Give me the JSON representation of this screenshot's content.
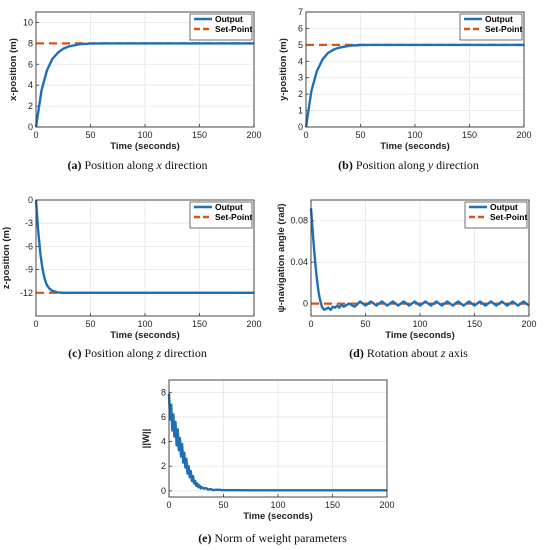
{
  "captions": [
    {
      "tag": "(a)",
      "pre": "Position along ",
      "var": "x",
      "post": " direction"
    },
    {
      "tag": "(b)",
      "pre": "Position along ",
      "var": "y",
      "post": " direction"
    },
    {
      "tag": "(c)",
      "pre": "Position along ",
      "var": "z",
      "post": " direction"
    },
    {
      "tag": "(d)",
      "pre": "Rotation about ",
      "var": "z",
      "post": " axis"
    },
    {
      "tag": "(e)",
      "pre": "Norm of weight parameters",
      "var": "",
      "post": ""
    }
  ],
  "colors": {
    "output": "#1f6fb5",
    "setpoint": "#d9541a",
    "axis": "#333333",
    "grid": "#e6e6e6"
  },
  "chart_data": [
    {
      "type": "line",
      "xlabel": "Time (seconds)",
      "ylabel": "x-position (m)",
      "xlim": [
        0,
        200
      ],
      "ylim": [
        0,
        11
      ],
      "xticks": [
        "0",
        "50",
        "100",
        "150",
        "200"
      ],
      "yticks": [
        {
          "v": 0,
          "t": "0"
        },
        {
          "v": 2,
          "t": "2"
        },
        {
          "v": 4,
          "t": "4"
        },
        {
          "v": 6,
          "t": "6"
        },
        {
          "v": 8,
          "t": "8"
        },
        {
          "v": 10,
          "t": "10"
        }
      ],
      "grid": true,
      "legend": "top-right",
      "series": [
        {
          "name": "Output",
          "x": [
            0,
            5,
            10,
            15,
            20,
            25,
            30,
            40,
            50,
            60,
            80,
            100,
            150,
            200
          ],
          "y": [
            0,
            3.5,
            5.4,
            6.5,
            7.1,
            7.5,
            7.7,
            7.92,
            7.98,
            8.0,
            8.0,
            8.0,
            8.0,
            8.0
          ]
        },
        {
          "name": "Set-Point",
          "x": [
            0,
            200
          ],
          "y": [
            8,
            8
          ]
        }
      ]
    },
    {
      "type": "line",
      "xlabel": "Time (seconds)",
      "ylabel": "y-position (m)",
      "xlim": [
        0,
        200
      ],
      "ylim": [
        0,
        7
      ],
      "xticks": [
        "0",
        "50",
        "100",
        "150",
        "200"
      ],
      "yticks": [
        {
          "v": 0,
          "t": "0"
        },
        {
          "v": 1,
          "t": "1"
        },
        {
          "v": 2,
          "t": "2"
        },
        {
          "v": 3,
          "t": "3"
        },
        {
          "v": 4,
          "t": "4"
        },
        {
          "v": 5,
          "t": "5"
        },
        {
          "v": 6,
          "t": "6"
        },
        {
          "v": 7,
          "t": "7"
        }
      ],
      "grid": true,
      "legend": "top-right",
      "series": [
        {
          "name": "Output",
          "x": [
            0,
            5,
            10,
            15,
            20,
            25,
            30,
            40,
            50,
            60,
            80,
            100,
            150,
            200
          ],
          "y": [
            0,
            2.2,
            3.4,
            4.1,
            4.5,
            4.7,
            4.82,
            4.95,
            4.99,
            5.0,
            5.0,
            5.0,
            5.0,
            5.0
          ]
        },
        {
          "name": "Set-Point",
          "x": [
            0,
            200
          ],
          "y": [
            5,
            5
          ]
        }
      ]
    },
    {
      "type": "line",
      "xlabel": "Time (seconds)",
      "ylabel": "z-position (m)",
      "xlim": [
        0,
        200
      ],
      "ylim": [
        -15,
        0
      ],
      "xticks": [
        "0",
        "50",
        "100",
        "150",
        "200"
      ],
      "yticks": [
        {
          "v": 0,
          "t": "0"
        },
        {
          "v": -3,
          "t": "-3"
        },
        {
          "v": -6,
          "t": "-6"
        },
        {
          "v": -9,
          "t": "-9"
        },
        {
          "v": -12,
          "t": "-12"
        }
      ],
      "grid": true,
      "legend": "top-right",
      "series": [
        {
          "name": "Output",
          "x": [
            0,
            2,
            4,
            6,
            8,
            10,
            12,
            15,
            20,
            25,
            30,
            40,
            100,
            200
          ],
          "y": [
            0,
            -4.0,
            -7.0,
            -8.9,
            -10.2,
            -11.0,
            -11.4,
            -11.75,
            -11.95,
            -12.0,
            -12.0,
            -12.0,
            -12.0,
            -12.0
          ]
        },
        {
          "name": "Set-Point",
          "x": [
            0,
            200
          ],
          "y": [
            -12,
            -12
          ]
        }
      ]
    },
    {
      "type": "line",
      "xlabel": "Time (seconds)",
      "ylabel": "ψ-navigation angle (rad)",
      "xlim": [
        0,
        200
      ],
      "ylim": [
        -0.012,
        0.1
      ],
      "xticks": [
        "0",
        "50",
        "100",
        "150",
        "200"
      ],
      "yticks": [
        {
          "v": 0,
          "t": "0"
        },
        {
          "v": 0.04,
          "t": "0.04"
        },
        {
          "v": 0.08,
          "t": "0.08"
        }
      ],
      "grid": true,
      "legend": "top-right",
      "series": [
        {
          "name": "Output",
          "x": [
            0,
            1,
            2,
            3,
            4,
            5,
            6,
            7,
            8,
            9,
            10,
            12,
            14,
            16,
            18,
            20,
            22,
            24,
            26,
            28,
            30,
            35,
            40,
            45,
            50,
            55,
            60,
            65,
            70,
            75,
            80,
            85,
            90,
            95,
            100,
            105,
            110,
            115,
            120,
            125,
            130,
            135,
            140,
            145,
            150,
            155,
            160,
            165,
            170,
            175,
            180,
            185,
            190,
            195,
            200
          ],
          "y": [
            0.092,
            0.078,
            0.063,
            0.05,
            0.038,
            0.028,
            0.019,
            0.011,
            0.005,
            0.001,
            -0.003,
            -0.006,
            -0.005,
            -0.004,
            -0.006,
            -0.003,
            -0.004,
            -0.002,
            -0.004,
            -0.001,
            -0.003,
            0.0,
            -0.003,
            0.002,
            -0.002,
            0.002,
            -0.002,
            0.002,
            -0.002,
            0.002,
            -0.002,
            0.002,
            -0.002,
            0.002,
            -0.002,
            0.002,
            -0.002,
            0.002,
            -0.002,
            0.002,
            -0.002,
            0.002,
            -0.002,
            0.002,
            -0.002,
            0.002,
            -0.002,
            0.002,
            -0.002,
            0.002,
            -0.002,
            0.002,
            -0.002,
            0.002,
            -0.002
          ]
        },
        {
          "name": "Set-Point",
          "x": [
            0,
            200
          ],
          "y": [
            0,
            0
          ]
        }
      ]
    },
    {
      "type": "line",
      "xlabel": "Time (seconds)",
      "ylabel": "||W||",
      "xlim": [
        0,
        200
      ],
      "ylim": [
        -0.5,
        9
      ],
      "xticks": [
        "0",
        "50",
        "100",
        "150",
        "200"
      ],
      "yticks": [
        {
          "v": 0,
          "t": "0"
        },
        {
          "v": 2,
          "t": "2"
        },
        {
          "v": 4,
          "t": "4"
        },
        {
          "v": 6,
          "t": "6"
        },
        {
          "v": 8,
          "t": "8"
        }
      ],
      "grid": true,
      "legend": "none",
      "series": [
        {
          "name": "",
          "x": [
            0,
            1,
            2,
            3,
            4,
            5,
            6,
            7,
            8,
            9,
            10,
            11,
            12,
            13,
            14,
            15,
            16,
            17,
            18,
            19,
            20,
            21,
            22,
            23,
            24,
            25,
            26,
            27,
            28,
            29,
            30,
            32,
            34,
            36,
            38,
            40,
            45,
            50,
            60,
            80,
            100,
            150,
            200
          ],
          "y": [
            7.9,
            5.8,
            7.0,
            4.9,
            6.2,
            4.4,
            5.6,
            3.7,
            5.0,
            3.3,
            4.3,
            2.8,
            3.8,
            2.3,
            3.1,
            1.9,
            2.6,
            1.4,
            2.0,
            1.1,
            1.6,
            0.8,
            1.2,
            0.6,
            0.8,
            0.4,
            0.6,
            0.3,
            0.45,
            0.2,
            0.3,
            0.18,
            0.22,
            0.1,
            0.15,
            0.07,
            0.09,
            0.05,
            0.05,
            0.04,
            0.04,
            0.04,
            0.04
          ]
        }
      ]
    }
  ]
}
